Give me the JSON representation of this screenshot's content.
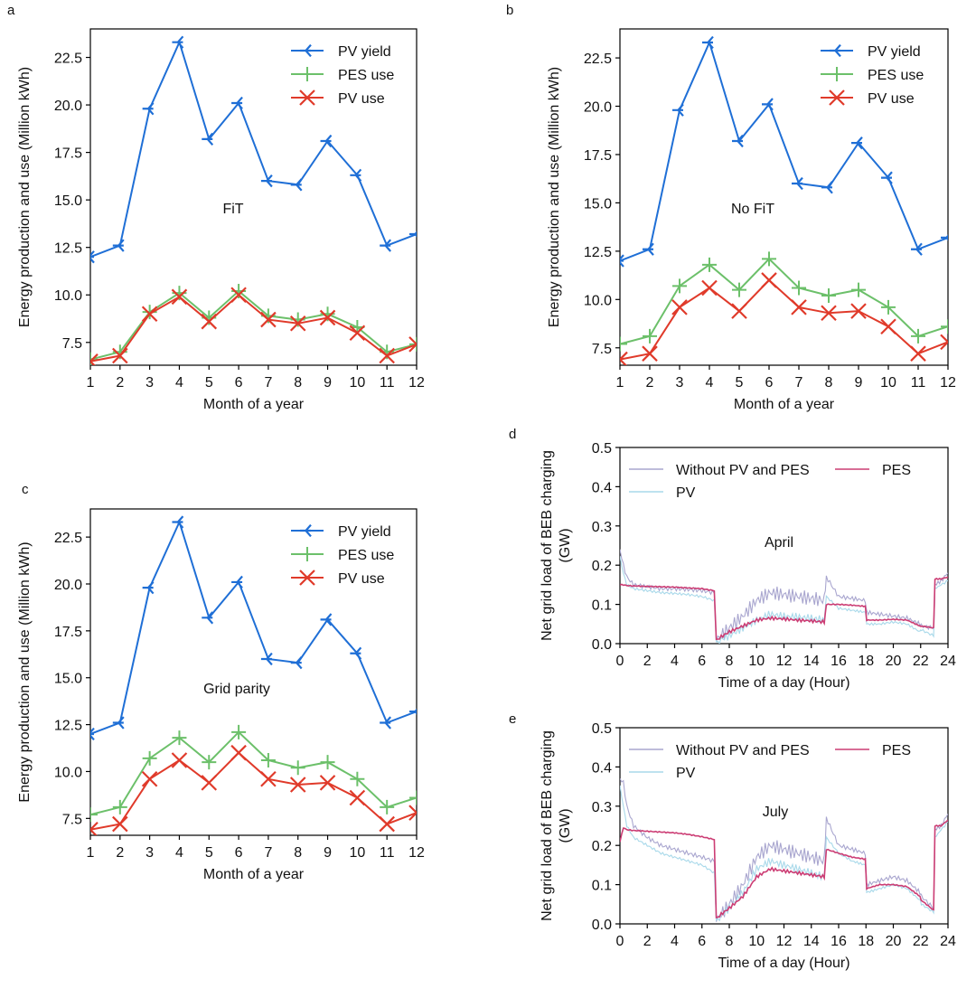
{
  "panel_labels": [
    "a",
    "b",
    "c",
    "d",
    "e"
  ],
  "colors": {
    "pv_yield": "#1f6fd6",
    "pes_use": "#6cc06a",
    "pv_use": "#e03a2a",
    "without": "#a9a6cf",
    "pv_load": "#a9d9ea",
    "pes_load": "#cc3d74"
  },
  "chart_data": [
    {
      "panel": "a",
      "type": "line",
      "annotation": "FiT",
      "xlabel": "Month of a year",
      "ylabel": "Energy production and use (Million kWh)",
      "xlim": [
        1,
        12
      ],
      "ylim": [
        6.3,
        24.0
      ],
      "xticks": [
        "1",
        "2",
        "3",
        "4",
        "5",
        "6",
        "7",
        "8",
        "9",
        "10",
        "11",
        "12"
      ],
      "yticks": [
        "7.5",
        "10.0",
        "12.5",
        "15.0",
        "17.5",
        "20.0",
        "22.5"
      ],
      "legend": "top-right",
      "x": [
        1,
        2,
        3,
        4,
        5,
        6,
        7,
        8,
        9,
        10,
        11,
        12
      ],
      "series": [
        {
          "name": "PV yield",
          "marker": "tri",
          "values": [
            12.0,
            12.6,
            19.8,
            23.3,
            18.2,
            20.1,
            16.0,
            15.8,
            18.1,
            16.3,
            12.6,
            13.2
          ]
        },
        {
          "name": "PES use",
          "marker": "plus",
          "values": [
            6.6,
            7.0,
            9.1,
            10.1,
            8.8,
            10.2,
            8.9,
            8.7,
            9.0,
            8.3,
            7.0,
            7.4
          ]
        },
        {
          "name": "PV use",
          "marker": "x",
          "values": [
            6.5,
            6.8,
            9.0,
            9.9,
            8.6,
            10.0,
            8.7,
            8.5,
            8.8,
            8.0,
            6.8,
            7.4
          ]
        }
      ]
    },
    {
      "panel": "b",
      "type": "line",
      "annotation": "No FiT",
      "xlabel": "Month of a year",
      "ylabel": "Energy production and use (Million kWh)",
      "xlim": [
        1,
        12
      ],
      "ylim": [
        6.6,
        24.0
      ],
      "xticks": [
        "1",
        "2",
        "3",
        "4",
        "5",
        "6",
        "7",
        "8",
        "9",
        "10",
        "11",
        "12"
      ],
      "yticks": [
        "7.5",
        "10.0",
        "12.5",
        "15.0",
        "17.5",
        "20.0",
        "22.5"
      ],
      "legend": "top-right",
      "x": [
        1,
        2,
        3,
        4,
        5,
        6,
        7,
        8,
        9,
        10,
        11,
        12
      ],
      "series": [
        {
          "name": "PV yield",
          "marker": "tri",
          "values": [
            12.0,
            12.6,
            19.8,
            23.3,
            18.2,
            20.1,
            16.0,
            15.8,
            18.1,
            16.3,
            12.6,
            13.2
          ]
        },
        {
          "name": "PES use",
          "marker": "plus",
          "values": [
            7.7,
            8.1,
            10.7,
            11.8,
            10.5,
            12.1,
            10.6,
            10.2,
            10.5,
            9.6,
            8.1,
            8.6
          ]
        },
        {
          "name": "PV use",
          "marker": "x",
          "values": [
            6.9,
            7.2,
            9.6,
            10.6,
            9.4,
            11.0,
            9.6,
            9.3,
            9.4,
            8.6,
            7.2,
            7.8
          ]
        }
      ]
    },
    {
      "panel": "c",
      "type": "line",
      "annotation": "Grid parity",
      "xlabel": "Month of a year",
      "ylabel": "Energy production and use (Million kWh)",
      "xlim": [
        1,
        12
      ],
      "ylim": [
        6.6,
        24.0
      ],
      "xticks": [
        "1",
        "2",
        "3",
        "4",
        "5",
        "6",
        "7",
        "8",
        "9",
        "10",
        "11",
        "12"
      ],
      "yticks": [
        "7.5",
        "10.0",
        "12.5",
        "15.0",
        "17.5",
        "20.0",
        "22.5"
      ],
      "legend": "top-right",
      "x": [
        1,
        2,
        3,
        4,
        5,
        6,
        7,
        8,
        9,
        10,
        11,
        12
      ],
      "series": [
        {
          "name": "PV yield",
          "marker": "tri",
          "values": [
            12.0,
            12.6,
            19.8,
            23.3,
            18.2,
            20.1,
            16.0,
            15.8,
            18.1,
            16.3,
            12.6,
            13.2
          ]
        },
        {
          "name": "PES use",
          "marker": "plus",
          "values": [
            7.7,
            8.1,
            10.7,
            11.8,
            10.5,
            12.1,
            10.6,
            10.2,
            10.5,
            9.6,
            8.1,
            8.6
          ]
        },
        {
          "name": "PV use",
          "marker": "x",
          "values": [
            6.9,
            7.2,
            9.6,
            10.6,
            9.4,
            11.0,
            9.6,
            9.3,
            9.4,
            8.6,
            7.2,
            7.8
          ]
        }
      ]
    },
    {
      "panel": "d",
      "type": "line",
      "annotation": "April",
      "xlabel": "Time of a day (Hour)",
      "ylabel": "Net grid load of BEB charging (GW)",
      "xlim": [
        0,
        24
      ],
      "ylim": [
        0,
        0.5
      ],
      "xticks": [
        "0",
        "2",
        "4",
        "6",
        "8",
        "10",
        "12",
        "14",
        "16",
        "18",
        "20",
        "22",
        "24"
      ],
      "yticks": [
        "0.0",
        "0.1",
        "0.2",
        "0.3",
        "0.4",
        "0.5"
      ],
      "legend": "top",
      "x": [
        0,
        0.25,
        0.5,
        1,
        2,
        3,
        4,
        5,
        6,
        6.9,
        7.05,
        8,
        9,
        10,
        11,
        12,
        13,
        14,
        14.95,
        15.1,
        16,
        17,
        17.95,
        18.05,
        19,
        20,
        21,
        21.95,
        22.05,
        22.95,
        23.05,
        23.5,
        24
      ],
      "series": [
        {
          "name": "Without PV and PES",
          "values": [
            0.24,
            0.2,
            0.17,
            0.15,
            0.145,
            0.14,
            0.14,
            0.138,
            0.135,
            0.13,
            0.01,
            0.04,
            0.07,
            0.11,
            0.13,
            0.125,
            0.12,
            0.115,
            0.11,
            0.17,
            0.12,
            0.115,
            0.11,
            0.08,
            0.075,
            0.07,
            0.065,
            0.05,
            0.045,
            0.04,
            0.15,
            0.16,
            0.18
          ]
        },
        {
          "name": "PV",
          "values": [
            0.22,
            0.18,
            0.15,
            0.14,
            0.135,
            0.13,
            0.128,
            0.125,
            0.12,
            0.11,
            0.005,
            0.02,
            0.04,
            0.06,
            0.075,
            0.07,
            0.068,
            0.065,
            0.06,
            0.12,
            0.09,
            0.085,
            0.08,
            0.05,
            0.05,
            0.055,
            0.05,
            0.03,
            0.035,
            0.02,
            0.14,
            0.15,
            0.16
          ]
        },
        {
          "name": "PES",
          "values": [
            0.15,
            0.15,
            0.148,
            0.147,
            0.146,
            0.145,
            0.144,
            0.142,
            0.14,
            0.135,
            0.01,
            0.03,
            0.045,
            0.06,
            0.065,
            0.063,
            0.06,
            0.058,
            0.055,
            0.1,
            0.1,
            0.098,
            0.095,
            0.06,
            0.06,
            0.062,
            0.06,
            0.045,
            0.045,
            0.04,
            0.165,
            0.165,
            0.17
          ]
        }
      ]
    },
    {
      "panel": "e",
      "type": "line",
      "annotation": "July",
      "xlabel": "Time of a day (Hour)",
      "ylabel": "Net grid load of BEB charging (GW)",
      "xlim": [
        0,
        24
      ],
      "ylim": [
        0,
        0.5
      ],
      "xticks": [
        "0",
        "2",
        "4",
        "6",
        "8",
        "10",
        "12",
        "14",
        "16",
        "18",
        "20",
        "22",
        "24"
      ],
      "yticks": [
        "0.0",
        "0.1",
        "0.2",
        "0.3",
        "0.4",
        "0.5"
      ],
      "legend": "top",
      "x": [
        0,
        0.25,
        0.5,
        1,
        2,
        3,
        4,
        5,
        6,
        6.9,
        7.05,
        8,
        9,
        10,
        11,
        12,
        13,
        14,
        14.95,
        15.1,
        16,
        17,
        17.95,
        18.05,
        19,
        20,
        21,
        21.95,
        22.05,
        22.95,
        23.05,
        23.5,
        24
      ],
      "series": [
        {
          "name": "Without PV and PES",
          "values": [
            0.37,
            0.36,
            0.3,
            0.25,
            0.22,
            0.2,
            0.19,
            0.18,
            0.17,
            0.16,
            0.01,
            0.05,
            0.1,
            0.17,
            0.2,
            0.19,
            0.18,
            0.17,
            0.16,
            0.27,
            0.2,
            0.19,
            0.18,
            0.1,
            0.11,
            0.12,
            0.11,
            0.08,
            0.07,
            0.04,
            0.24,
            0.25,
            0.28
          ]
        },
        {
          "name": "PV",
          "values": [
            0.35,
            0.3,
            0.25,
            0.22,
            0.2,
            0.18,
            0.17,
            0.16,
            0.15,
            0.13,
            0.01,
            0.04,
            0.08,
            0.14,
            0.16,
            0.15,
            0.14,
            0.13,
            0.12,
            0.22,
            0.18,
            0.16,
            0.15,
            0.08,
            0.09,
            0.1,
            0.09,
            0.06,
            0.05,
            0.03,
            0.22,
            0.24,
            0.26
          ]
        },
        {
          "name": "PES",
          "values": [
            0.21,
            0.245,
            0.24,
            0.238,
            0.236,
            0.234,
            0.232,
            0.228,
            0.222,
            0.215,
            0.015,
            0.04,
            0.07,
            0.12,
            0.14,
            0.135,
            0.13,
            0.125,
            0.12,
            0.19,
            0.18,
            0.17,
            0.165,
            0.09,
            0.1,
            0.1,
            0.095,
            0.07,
            0.06,
            0.035,
            0.25,
            0.25,
            0.265
          ]
        }
      ]
    }
  ]
}
